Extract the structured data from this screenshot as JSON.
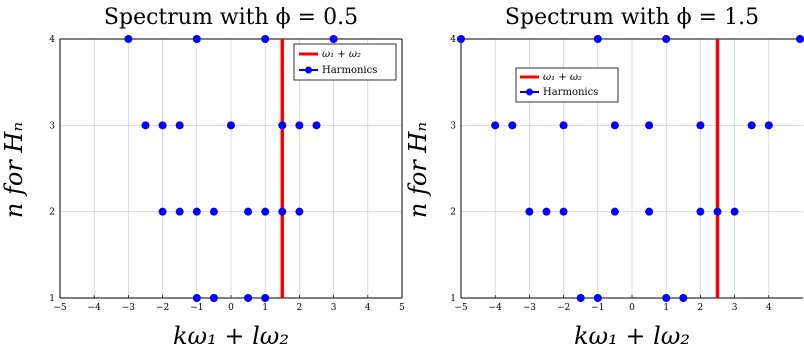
{
  "chart_data": [
    {
      "type": "scatter",
      "title": "Spectrum with ϕ = 0.5",
      "xlabel": "kω₁ + lω₂",
      "ylabel": "n for Hₙ",
      "xlim": [
        -5,
        5
      ],
      "ylim": [
        1,
        4
      ],
      "xticks": [
        -5,
        -4,
        -3,
        -2,
        -1,
        0,
        1,
        2,
        3,
        4,
        5
      ],
      "yticks": [
        1,
        2,
        3,
        4
      ],
      "grid": true,
      "legend_position": "top-right",
      "vline": {
        "name": "ω₁ + ω₂",
        "x": 1.5,
        "color": "#ff0000"
      },
      "harmonics": {
        "name": "Harmonics",
        "color": "#0000ff",
        "points": [
          {
            "x": -1,
            "y": 1
          },
          {
            "x": -0.5,
            "y": 1
          },
          {
            "x": 0.5,
            "y": 1
          },
          {
            "x": 1,
            "y": 1
          },
          {
            "x": -2,
            "y": 2
          },
          {
            "x": -1.5,
            "y": 2
          },
          {
            "x": -1,
            "y": 2
          },
          {
            "x": -0.5,
            "y": 2
          },
          {
            "x": 0.5,
            "y": 2
          },
          {
            "x": 1,
            "y": 2
          },
          {
            "x": 1.5,
            "y": 2
          },
          {
            "x": 2,
            "y": 2
          },
          {
            "x": -2.5,
            "y": 3
          },
          {
            "x": -2,
            "y": 3
          },
          {
            "x": -1.5,
            "y": 3
          },
          {
            "x": 0,
            "y": 3
          },
          {
            "x": 1.5,
            "y": 3
          },
          {
            "x": 2,
            "y": 3
          },
          {
            "x": 2.5,
            "y": 3
          },
          {
            "x": -3,
            "y": 4
          },
          {
            "x": -1,
            "y": 4
          },
          {
            "x": 1,
            "y": 4
          },
          {
            "x": 3,
            "y": 4
          }
        ]
      }
    },
    {
      "type": "scatter",
      "title": "Spectrum with ϕ = 1.5",
      "xlabel": "kω₁ + lω₂",
      "ylabel": "n for Hₙ",
      "xlim": [
        -5,
        5
      ],
      "ylim": [
        1,
        4
      ],
      "xticks": [
        -5,
        -4,
        -3,
        -2,
        -1,
        0,
        1,
        2,
        3,
        4
      ],
      "yticks": [
        1,
        2,
        3,
        4
      ],
      "grid": true,
      "legend_position": "top-left",
      "vline": {
        "name": "ω₁ + ω₂",
        "x": 2.5,
        "color": "#ff0000"
      },
      "harmonics": {
        "name": "Harmonics",
        "color": "#0000ff",
        "points": [
          {
            "x": -1.5,
            "y": 1
          },
          {
            "x": -1,
            "y": 1
          },
          {
            "x": 1,
            "y": 1
          },
          {
            "x": 1.5,
            "y": 1
          },
          {
            "x": -3,
            "y": 2
          },
          {
            "x": -2.5,
            "y": 2
          },
          {
            "x": -2,
            "y": 2
          },
          {
            "x": -0.5,
            "y": 2
          },
          {
            "x": 0.5,
            "y": 2
          },
          {
            "x": 2,
            "y": 2
          },
          {
            "x": 2.5,
            "y": 2
          },
          {
            "x": 3,
            "y": 2
          },
          {
            "x": -4,
            "y": 3
          },
          {
            "x": -3.5,
            "y": 3
          },
          {
            "x": -2,
            "y": 3
          },
          {
            "x": -0.5,
            "y": 3
          },
          {
            "x": 0.5,
            "y": 3
          },
          {
            "x": 2,
            "y": 3
          },
          {
            "x": 3.5,
            "y": 3
          },
          {
            "x": 4,
            "y": 3
          },
          {
            "x": -5,
            "y": 4
          },
          {
            "x": -1,
            "y": 4
          },
          {
            "x": 1,
            "y": 4
          },
          {
            "x": 5,
            "y": 4
          }
        ]
      }
    }
  ]
}
